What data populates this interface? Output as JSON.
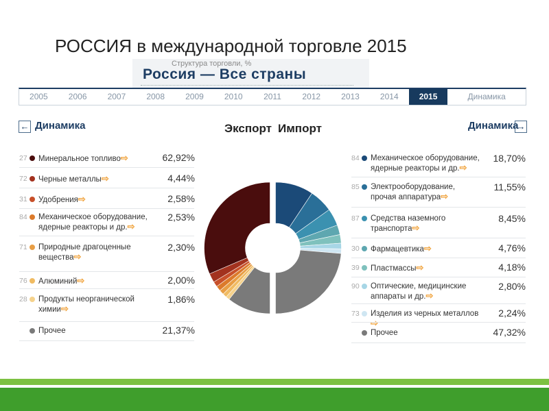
{
  "slide_title": "РОССИЯ в международной торговле 2015",
  "header": {
    "subtitle": "Структура торговли, %",
    "title": "Россия — Все страны"
  },
  "years": [
    "2005",
    "2006",
    "2007",
    "2008",
    "2009",
    "2010",
    "2011",
    "2012",
    "2013",
    "2014",
    "2015"
  ],
  "active_year": "2015",
  "dynamics_tab": "Динамика",
  "left_panel": {
    "dyn_label": "Динамика",
    "nav_icon": "arrow-left-icon"
  },
  "right_panel": {
    "dyn_label": "Динамика",
    "nav_icon": "arrow-right-icon"
  },
  "export_label": "Экспорт",
  "import_label": "Импорт",
  "arrow_icon": "double-arrow-icon",
  "chart_data": {
    "type": "pie",
    "title": "",
    "subtitle": "Структура торговли, %",
    "export": {
      "name": "Экспорт",
      "items": [
        {
          "code": "27",
          "label": "Минеральное топливо",
          "value": 62.92,
          "value_text": "62,92%",
          "color": "#4a0d0d"
        },
        {
          "code": "72",
          "label": "Черные металлы",
          "value": 4.44,
          "value_text": "4,44%",
          "color": "#a3321f"
        },
        {
          "code": "31",
          "label": "Удобрения",
          "value": 2.58,
          "value_text": "2,58%",
          "color": "#c8502a"
        },
        {
          "code": "84",
          "label": "Механическое оборудование, ядерные реакторы и др.",
          "value": 2.53,
          "value_text": "2,53%",
          "color": "#dc7a2b"
        },
        {
          "code": "71",
          "label": "Природные драгоценные вещества",
          "value": 2.3,
          "value_text": "2,30%",
          "color": "#e89e45"
        },
        {
          "code": "76",
          "label": "Алюминий",
          "value": 2.0,
          "value_text": "2,00%",
          "color": "#f0bb62"
        },
        {
          "code": "28",
          "label": "Продукты неорганической химии",
          "value": 1.86,
          "value_text": "1,86%",
          "color": "#f5d28c"
        },
        {
          "code": "",
          "label": "Прочее",
          "value": 21.37,
          "value_text": "21,37%",
          "color": "#7a7a7a"
        }
      ]
    },
    "import": {
      "name": "Импорт",
      "items": [
        {
          "code": "84",
          "label": "Механическое оборудование, ядерные реакторы и др.",
          "value": 18.7,
          "value_text": "18,70%",
          "color": "#1b4a78"
        },
        {
          "code": "85",
          "label": "Электрооборудование, прочая аппаратура",
          "value": 11.55,
          "value_text": "11,55%",
          "color": "#2a6f98"
        },
        {
          "code": "87",
          "label": "Средства наземного транспорта",
          "value": 8.45,
          "value_text": "8,45%",
          "color": "#3b91b0"
        },
        {
          "code": "30",
          "label": "Фармацевтика",
          "value": 4.76,
          "value_text": "4,76%",
          "color": "#5ea7b0"
        },
        {
          "code": "39",
          "label": "Пластмассы",
          "value": 4.18,
          "value_text": "4,18%",
          "color": "#7fc1bd"
        },
        {
          "code": "90",
          "label": "Оптические, медицинские аппараты и др.",
          "value": 2.8,
          "value_text": "2,80%",
          "color": "#a7d6e6"
        },
        {
          "code": "73",
          "label": "Изделия из черных металлов",
          "value": 2.24,
          "value_text": "2,24%",
          "color": "#cfe6f2"
        },
        {
          "code": "",
          "label": "Прочее",
          "value": 47.32,
          "value_text": "47,32%",
          "color": "#7a7a7a"
        }
      ]
    }
  }
}
